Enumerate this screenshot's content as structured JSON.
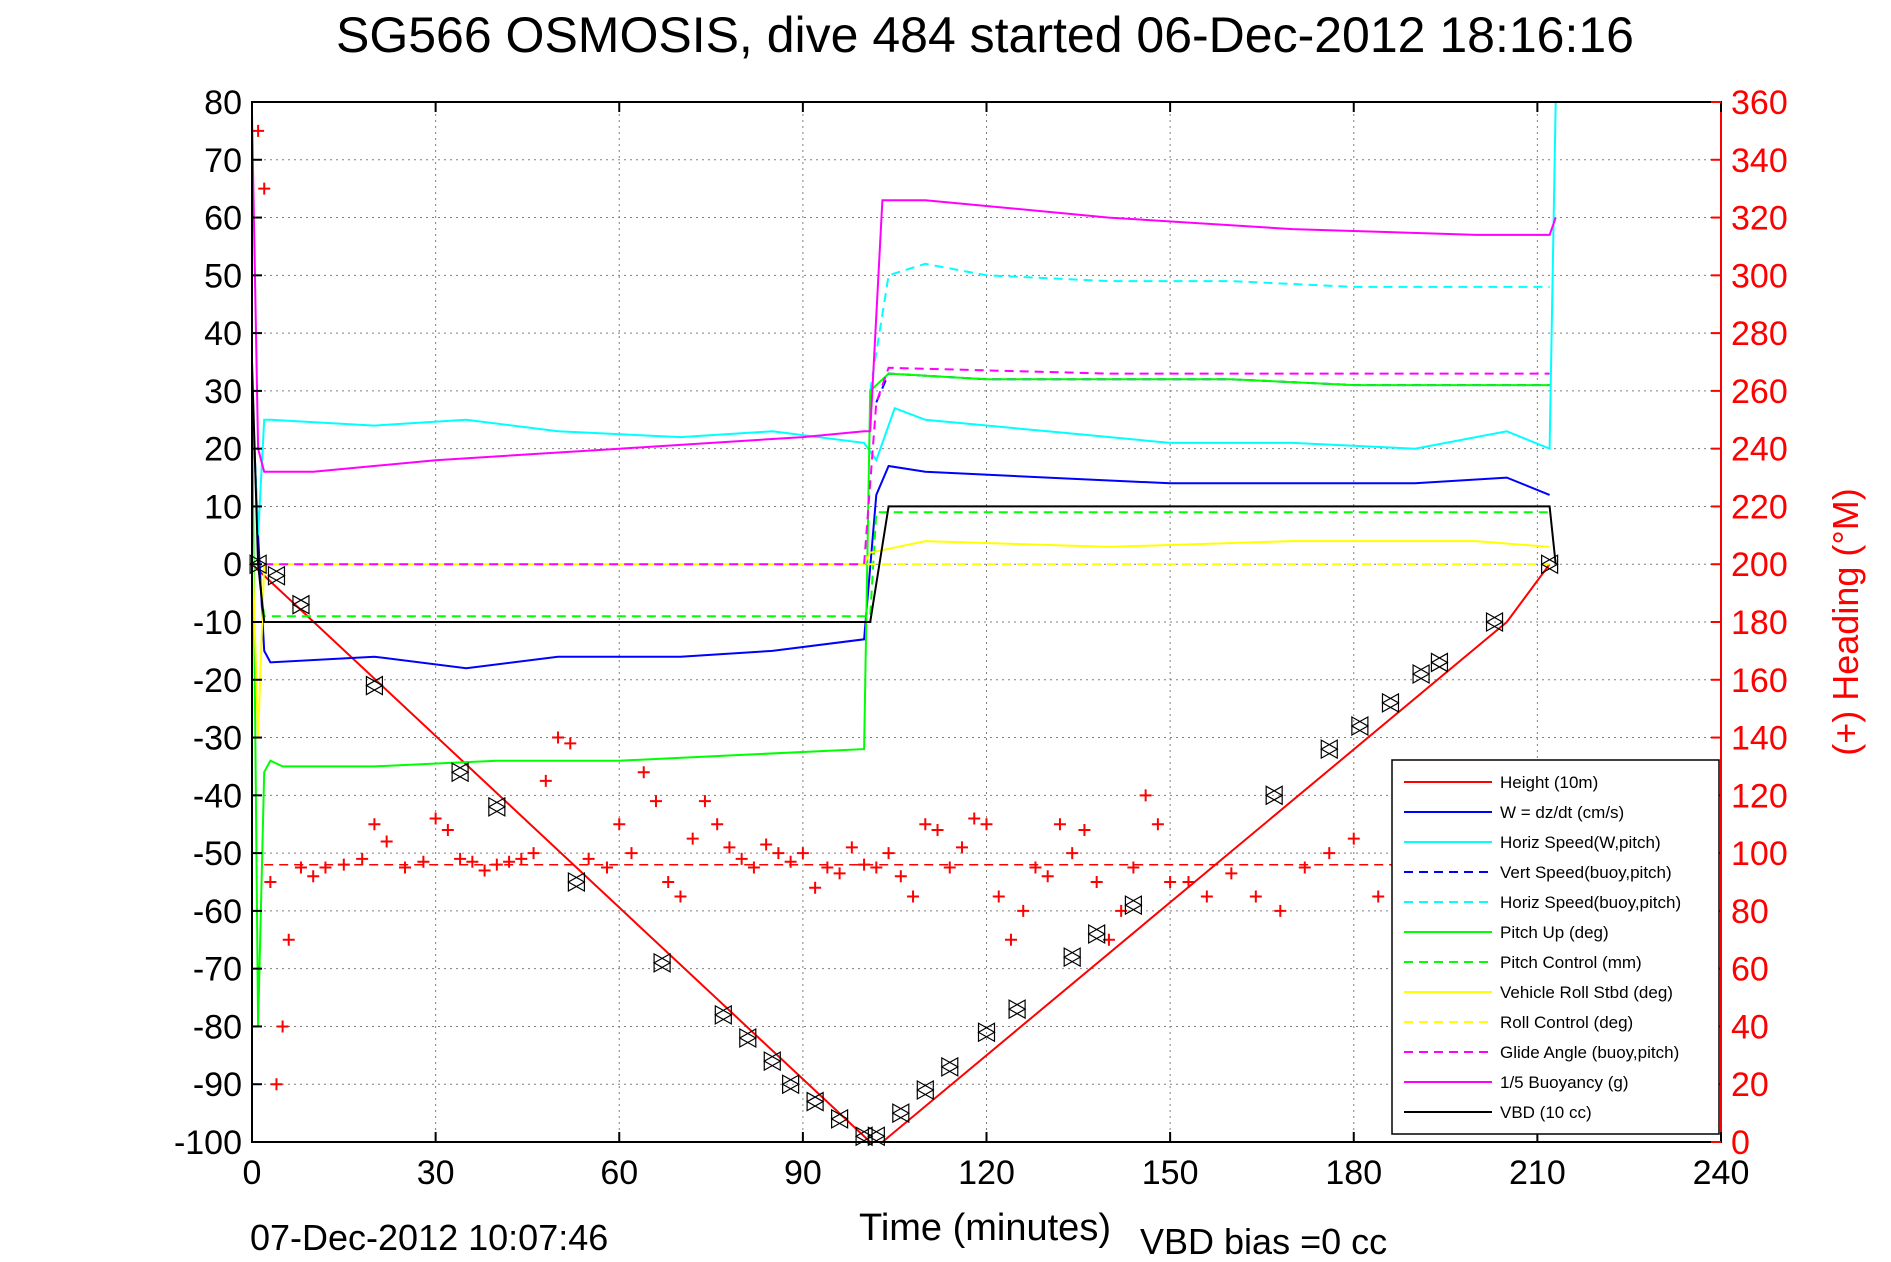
{
  "chart_data": {
    "type": "line",
    "title": "SG566 OSMOSIS, dive 484 started 06-Dec-2012 18:16:16",
    "xlabel": "Time (minutes)",
    "ylabel_right": "(+) Heading (°M)",
    "footer_left": "07-Dec-2012 10:07:46",
    "footer_right": "VBD bias =0 cc",
    "xlim": [
      0,
      240
    ],
    "ylim_left": [
      -100,
      80
    ],
    "ylim_right": [
      0,
      360
    ],
    "x_ticks": [
      "0",
      "30",
      "60",
      "90",
      "120",
      "150",
      "180",
      "210",
      "240"
    ],
    "y_left_ticks": [
      "80",
      "70",
      "60",
      "50",
      "40",
      "30",
      "20",
      "10",
      "0",
      "-10",
      "-20",
      "-30",
      "-40",
      "-50",
      "-60",
      "-70",
      "-80",
      "-90",
      "-100"
    ],
    "y_right_ticks": [
      "360",
      "340",
      "320",
      "300",
      "280",
      "260",
      "240",
      "220",
      "200",
      "180",
      "160",
      "140",
      "120",
      "100",
      "80",
      "60",
      "40",
      "20",
      "0"
    ],
    "grid": true,
    "legend_position": "bottom-right",
    "colors": {
      "axes": "#000000",
      "right_axis": "#ff0000",
      "grid": "#808080"
    },
    "series": [
      {
        "name": "Height (10m)",
        "color": "#ff0000",
        "dash": "solid",
        "x": [
          0,
          1,
          101,
          103,
          205,
          212
        ],
        "y": [
          0,
          -1,
          -100,
          -100,
          -10,
          0
        ]
      },
      {
        "name": "W = dz/dt (cm/s)",
        "color": "#0000ff",
        "dash": "solid",
        "x": [
          0,
          1,
          2,
          3,
          20,
          35,
          50,
          70,
          85,
          100,
          102,
          104,
          110,
          130,
          150,
          170,
          190,
          205,
          212
        ],
        "y": [
          30,
          5,
          -15,
          -17,
          -16,
          -18,
          -16,
          -16,
          -15,
          -13,
          12,
          17,
          16,
          15,
          14,
          14,
          14,
          15,
          12
        ]
      },
      {
        "name": "Horiz Speed(W,pitch)",
        "color": "#00ffff",
        "dash": "solid",
        "x": [
          0,
          1,
          2,
          3,
          20,
          35,
          50,
          70,
          85,
          100,
          102,
          105,
          110,
          130,
          150,
          170,
          190,
          205,
          212,
          213
        ],
        "y": [
          30,
          5,
          25,
          25,
          24,
          25,
          23,
          22,
          23,
          21,
          18,
          27,
          25,
          23,
          21,
          21,
          20,
          23,
          20,
          80
        ]
      },
      {
        "name": "Vert Speed(buoy,pitch)",
        "color": "#0000ff",
        "dash": "dash",
        "x": [
          102,
          104,
          120,
          140,
          160,
          180,
          200,
          212
        ],
        "y": [
          28,
          33,
          32,
          32,
          32,
          31,
          31,
          31
        ]
      },
      {
        "name": "Horiz Speed(buoy,pitch)",
        "color": "#00ffff",
        "dash": "dash",
        "x": [
          101,
          104,
          110,
          120,
          140,
          160,
          180,
          200,
          212
        ],
        "y": [
          30,
          50,
          52,
          50,
          49,
          49,
          48,
          48,
          48
        ]
      },
      {
        "name": "Pitch Up (deg)",
        "color": "#00ff00",
        "dash": "solid",
        "x": [
          0,
          1,
          2,
          3,
          5,
          20,
          40,
          60,
          80,
          100,
          101,
          104,
          120,
          140,
          160,
          180,
          200,
          212
        ],
        "y": [
          30,
          -80,
          -36,
          -34,
          -35,
          -35,
          -34,
          -34,
          -33,
          -32,
          30,
          33,
          32,
          32,
          32,
          31,
          31,
          31
        ]
      },
      {
        "name": "Pitch Control (mm)",
        "color": "#00ff00",
        "dash": "dash",
        "x": [
          1,
          2,
          100,
          101,
          102,
          212
        ],
        "y": [
          0,
          -9,
          -9,
          -9,
          9,
          9
        ]
      },
      {
        "name": "Vehicle Roll Stbd (deg)",
        "color": "#ffff00",
        "dash": "solid",
        "x": [
          0,
          1,
          2,
          100,
          101,
          110,
          140,
          170,
          200,
          212
        ],
        "y": [
          5,
          -30,
          0,
          0,
          2,
          4,
          3,
          4,
          4,
          3
        ]
      },
      {
        "name": "Roll Control (deg)",
        "color": "#ffff00",
        "dash": "dash",
        "x": [
          0,
          212
        ],
        "y": [
          0,
          0
        ]
      },
      {
        "name": "Glide Angle (buoy,pitch)",
        "color": "#ff00ff",
        "dash": "dash",
        "x": [
          2,
          100,
          102,
          104,
          140,
          180,
          212
        ],
        "y": [
          0,
          0,
          28,
          34,
          33,
          33,
          33
        ]
      },
      {
        "name": "1/5 Buoyancy (g)",
        "color": "#ff00ff",
        "dash": "solid",
        "x": [
          0,
          1,
          2,
          10,
          30,
          60,
          90,
          100,
          101,
          103,
          110,
          140,
          170,
          200,
          212,
          213
        ],
        "y": [
          78,
          20,
          16,
          16,
          18,
          20,
          22,
          23,
          23,
          63,
          63,
          60,
          58,
          57,
          57,
          60
        ]
      },
      {
        "name": "VBD (10 cc)",
        "color": "#000000",
        "dash": "solid",
        "x": [
          0,
          1,
          2,
          100,
          101,
          104,
          212,
          213
        ],
        "y": [
          35,
          0,
          -10,
          -10,
          -10,
          10,
          10,
          0
        ]
      }
    ],
    "heading_points": {
      "name": "Heading",
      "color": "#ff0000",
      "marker": "+",
      "axis": "right",
      "x": [
        1,
        2,
        3,
        4,
        5,
        6,
        8,
        10,
        12,
        15,
        18,
        20,
        22,
        25,
        28,
        30,
        32,
        34,
        36,
        38,
        40,
        42,
        44,
        46,
        48,
        50,
        52,
        55,
        58,
        60,
        62,
        64,
        66,
        68,
        70,
        72,
        74,
        76,
        78,
        80,
        82,
        84,
        86,
        88,
        90,
        92,
        94,
        96,
        98,
        100,
        102,
        104,
        106,
        108,
        110,
        112,
        114,
        116,
        118,
        120,
        122,
        124,
        126,
        128,
        130,
        132,
        134,
        136,
        138,
        140,
        142,
        144,
        146,
        148,
        150,
        153,
        156,
        160,
        164,
        168,
        172,
        176,
        180,
        184,
        188,
        192,
        196,
        200,
        204,
        208,
        212
      ],
      "y": [
        350,
        330,
        90,
        20,
        40,
        70,
        95,
        92,
        95,
        96,
        98,
        110,
        104,
        95,
        97,
        112,
        108,
        98,
        97,
        94,
        96,
        97,
        98,
        100,
        125,
        140,
        138,
        98,
        95,
        110,
        100,
        128,
        118,
        90,
        85,
        105,
        118,
        110,
        102,
        98,
        95,
        103,
        100,
        97,
        100,
        88,
        95,
        93,
        102,
        96,
        95,
        100,
        92,
        85,
        110,
        108,
        95,
        102,
        112,
        110,
        85,
        70,
        80,
        95,
        92,
        110,
        100,
        108,
        90,
        70,
        80,
        95,
        120,
        110,
        90,
        90,
        85,
        93,
        85,
        80,
        95,
        100,
        105,
        85,
        82,
        95,
        110,
        100,
        95,
        98,
        95
      ]
    },
    "heading_mean": {
      "name": "Heading mean",
      "color": "#ff0000",
      "dash": "dash",
      "axis": "right",
      "x": [
        2,
        212
      ],
      "y": [
        96,
        96
      ]
    },
    "profile_markers": {
      "color": "#000000",
      "marker": "triangle",
      "x": [
        1,
        4,
        8,
        20,
        34,
        40,
        53,
        67,
        77,
        81,
        85,
        88,
        92,
        96,
        100,
        102,
        106,
        110,
        114,
        120,
        125,
        134,
        138,
        144,
        167,
        176,
        181,
        186,
        191,
        194,
        203,
        212
      ],
      "y": [
        0,
        -2,
        -7,
        -21,
        -36,
        -42,
        -55,
        -69,
        -78,
        -82,
        -86,
        -90,
        -93,
        -96,
        -99,
        -99,
        -95,
        -91,
        -87,
        -81,
        -77,
        -68,
        -64,
        -59,
        -40,
        -32,
        -28,
        -24,
        -19,
        -17,
        -10,
        0
      ]
    }
  }
}
